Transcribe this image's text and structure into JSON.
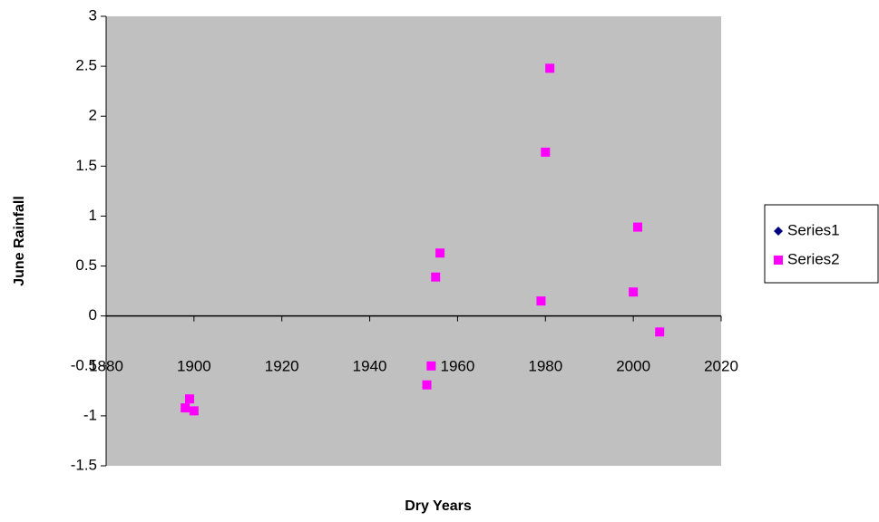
{
  "chart_data": {
    "type": "scatter",
    "xlabel": "Dry Years",
    "ylabel": "June Rainfall",
    "xlim": [
      1880,
      2020
    ],
    "xticks": [
      1880,
      1900,
      1920,
      1940,
      1960,
      1980,
      2000,
      2020
    ],
    "ylim": [
      -1.5,
      3
    ],
    "yticks": [
      -1.5,
      -1,
      -0.5,
      0,
      0.5,
      1,
      1.5,
      2,
      2.5,
      3
    ],
    "plot_background": "#c0c0c0",
    "legend": "right",
    "series": [
      {
        "name": "Series1",
        "color": "#000080",
        "marker": "diamond",
        "x": [],
        "values": []
      },
      {
        "name": "Series2",
        "color": "#ff00ff",
        "marker": "square",
        "x": [
          1899,
          1898,
          1900,
          1953,
          1954,
          1955,
          1956,
          1979,
          1980,
          1981,
          2000,
          2001,
          2006
        ],
        "values": [
          -0.83,
          -0.92,
          -0.95,
          -0.69,
          -0.5,
          0.39,
          0.63,
          0.15,
          1.64,
          2.48,
          0.24,
          0.89,
          -0.16
        ]
      }
    ]
  }
}
